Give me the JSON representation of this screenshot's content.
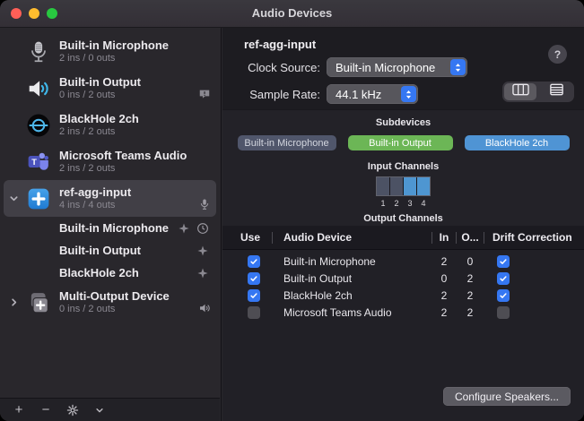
{
  "window": {
    "title": "Audio Devices"
  },
  "sidebar": {
    "devices": [
      {
        "name": "Built-in Microphone",
        "subtitle": "2 ins / 0 outs",
        "icon": "microphone-icon",
        "badges": []
      },
      {
        "name": "Built-in Output",
        "subtitle": "0 ins / 2 outs",
        "icon": "speaker-icon",
        "badges": [
          "alert-bubble-icon"
        ]
      },
      {
        "name": "BlackHole 2ch",
        "subtitle": "2 ins / 2 outs",
        "icon": "blackhole-icon",
        "badges": []
      },
      {
        "name": "Microsoft Teams Audio",
        "subtitle": "2 ins / 2 outs",
        "icon": "teams-icon",
        "badges": []
      },
      {
        "name": "ref-agg-input",
        "subtitle": "4 ins / 4 outs",
        "icon": "aggregate-plus-icon",
        "badges": [
          "microphone-badge-icon"
        ],
        "selected": true,
        "expanded": true,
        "children": [
          {
            "name": "Built-in Microphone",
            "badges": [
              "drift-icon",
              "clock-icon"
            ]
          },
          {
            "name": "Built-in Output",
            "badges": [
              "drift-icon"
            ]
          },
          {
            "name": "BlackHole 2ch",
            "badges": [
              "drift-icon"
            ]
          }
        ]
      },
      {
        "name": "Multi-Output Device",
        "subtitle": "0 ins / 2 outs",
        "icon": "multi-output-icon",
        "badges": [
          "speaker-badge-icon"
        ],
        "collapsed": true
      }
    ],
    "toolbar": {
      "add_label": "+",
      "remove_label": "−"
    }
  },
  "panel": {
    "title": "ref-agg-input",
    "help_label": "?",
    "clock_source": {
      "label": "Clock Source:",
      "value": "Built-in Microphone"
    },
    "sample_rate": {
      "label": "Sample Rate:",
      "value": "44.1 kHz"
    },
    "subdevices": {
      "title": "Subdevices",
      "pills": [
        {
          "label": "Built-in Microphone",
          "color": "#50566b",
          "text_color": "#d3d6df"
        },
        {
          "label": "Built-in Output",
          "color": "#6cb656",
          "text_color": "#ffffff"
        },
        {
          "label": "BlackHole 2ch",
          "color": "#4f94d4",
          "text_color": "#ffffff"
        }
      ]
    },
    "input_channels": {
      "title": "Input Channels",
      "channels": [
        {
          "number": "1",
          "active": false
        },
        {
          "number": "2",
          "active": false
        },
        {
          "number": "3",
          "active": true
        },
        {
          "number": "4",
          "active": true
        }
      ]
    },
    "output_channels_title": "Output Channels",
    "table": {
      "headers": {
        "use": "Use",
        "device": "Audio Device",
        "in": "In",
        "out": "O...",
        "drift": "Drift Correction"
      },
      "rows": [
        {
          "use": true,
          "device": "Built-in Microphone",
          "in": "2",
          "out": "0",
          "drift": true
        },
        {
          "use": true,
          "device": "Built-in Output",
          "in": "0",
          "out": "2",
          "drift": true
        },
        {
          "use": true,
          "device": "BlackHole 2ch",
          "in": "2",
          "out": "2",
          "drift": true
        },
        {
          "use": false,
          "device": "Microsoft Teams Audio",
          "in": "2",
          "out": "2",
          "drift": false
        }
      ]
    },
    "configure_speakers_label": "Configure Speakers..."
  },
  "colors": {
    "accent_blue": "#3577f2",
    "channel_active": "#4e96d1",
    "channel_inactive": "#4c5264",
    "traffic_red": "#ff5f57",
    "traffic_yellow": "#febc2e",
    "traffic_green": "#28c840"
  }
}
